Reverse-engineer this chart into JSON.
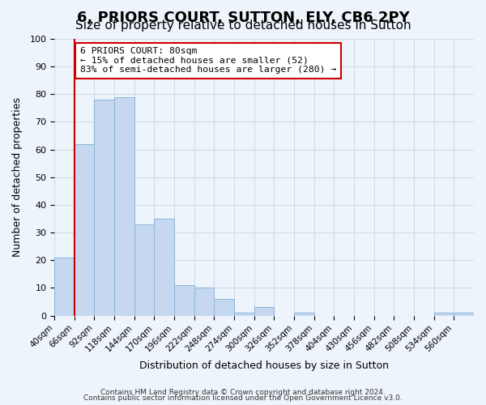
{
  "title": "6, PRIORS COURT, SUTTON, ELY, CB6 2PY",
  "subtitle": "Size of property relative to detached houses in Sutton",
  "xlabel": "Distribution of detached houses by size in Sutton",
  "ylabel": "Number of detached properties",
  "bin_labels": [
    "40sqm",
    "66sqm",
    "92sqm",
    "118sqm",
    "144sqm",
    "170sqm",
    "196sqm",
    "222sqm",
    "248sqm",
    "274sqm",
    "300sqm",
    "326sqm",
    "352sqm",
    "378sqm",
    "404sqm",
    "430sqm",
    "456sqm",
    "482sqm",
    "508sqm",
    "534sqm",
    "560sqm"
  ],
  "bar_values": [
    21,
    62,
    78,
    79,
    33,
    35,
    11,
    10,
    6,
    1,
    3,
    0,
    1,
    0,
    0,
    0,
    0,
    0,
    0,
    1,
    1
  ],
  "bar_color": "#c5d8f0",
  "bar_edge_color": "#8ab4d8",
  "vline_x": 1.0,
  "vline_color": "#cc0000",
  "annotation_text": "6 PRIORS COURT: 80sqm\n← 15% of detached houses are smaller (52)\n83% of semi-detached houses are larger (280) →",
  "annotation_box_color": "#ffffff",
  "annotation_box_edge": "#cc0000",
  "ylim": [
    0,
    100
  ],
  "yticks": [
    0,
    10,
    20,
    30,
    40,
    50,
    60,
    70,
    80,
    90,
    100
  ],
  "grid_color": "#d0dce8",
  "footer1": "Contains HM Land Registry data © Crown copyright and database right 2024.",
  "footer2": "Contains public sector information licensed under the Open Government Licence v3.0.",
  "bg_color": "#eef4fb",
  "title_fontsize": 13,
  "subtitle_fontsize": 11
}
